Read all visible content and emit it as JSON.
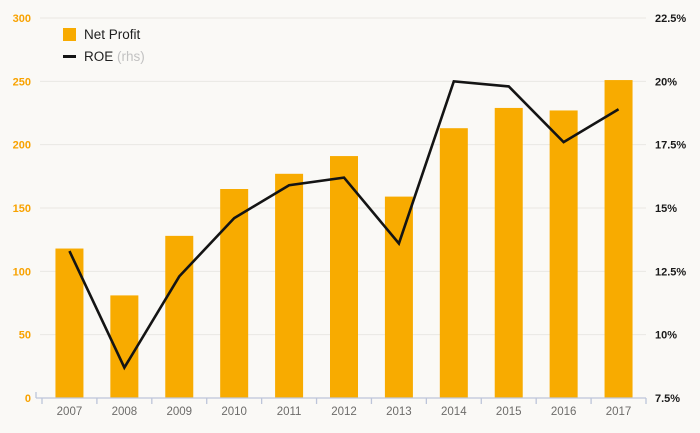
{
  "chart_data": {
    "type": "bar",
    "title": "",
    "categories": [
      "2007",
      "2008",
      "2009",
      "2010",
      "2011",
      "2012",
      "2013",
      "2014",
      "2015",
      "2016",
      "2017"
    ],
    "series": [
      {
        "name": "Net Profit",
        "type": "bar",
        "axis": "left",
        "color": "#f8ab00",
        "values": [
          118,
          81,
          128,
          165,
          177,
          191,
          159,
          213,
          229,
          227,
          251
        ]
      },
      {
        "name": "ROE",
        "suffix": "(rhs)",
        "type": "line",
        "axis": "right",
        "color": "#141414",
        "values": [
          13.3,
          8.7,
          12.3,
          14.6,
          15.9,
          16.2,
          13.6,
          20.0,
          19.8,
          17.6,
          18.9
        ]
      }
    ],
    "left_axis": {
      "min": 0,
      "max": 300,
      "step": 50,
      "tick_labels": [
        "0",
        "50",
        "100",
        "150",
        "200",
        "250",
        "300"
      ],
      "color": "#f8a200"
    },
    "right_axis": {
      "min": 7.5,
      "max": 22.5,
      "step": 2.5,
      "tick_labels": [
        "7.5%",
        "10%",
        "12.5%",
        "15%",
        "17.5%",
        "20%",
        "22.5%"
      ],
      "color": "#1a1a1a"
    },
    "grid": true,
    "legend_position": "top-left"
  },
  "legend": {
    "net_profit_label": "Net Profit",
    "roe_label": "ROE",
    "roe_suffix": "(rhs)"
  },
  "colors": {
    "bar": "#f8ab00",
    "line": "#141414",
    "background": "#faf9f6",
    "gridline": "#e9e8e3",
    "axis_line": "#bdc5da",
    "year_label": "#6d6c6a",
    "right_label": "#1a1a1a",
    "left_label": "#f8a200",
    "legend_muted": "#c2c2c2"
  }
}
